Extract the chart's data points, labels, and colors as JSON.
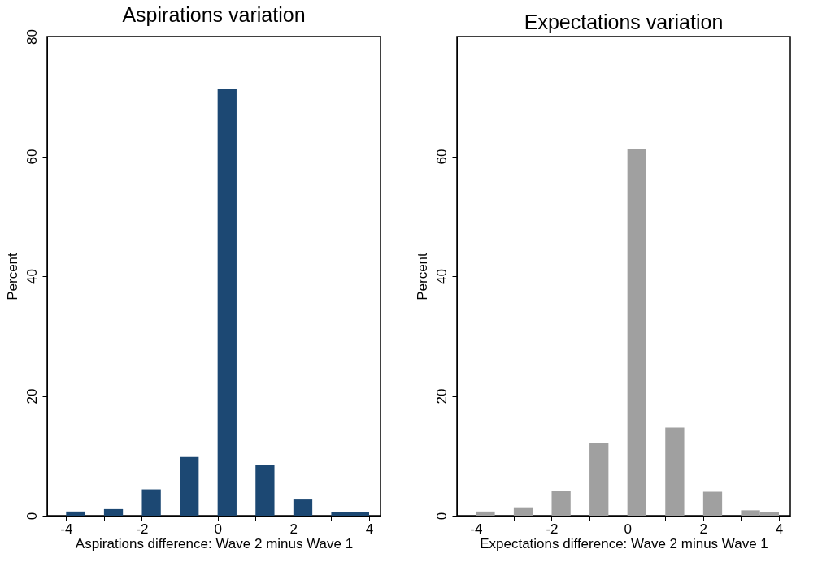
{
  "chart_data": [
    {
      "type": "histogram",
      "title": "Aspirations variation",
      "xlabel": "Aspirations difference: Wave 2 minus Wave 1",
      "ylabel": "Percent",
      "bins": [
        -4,
        -3.5,
        -3,
        -2.5,
        -2,
        -1.5,
        -1,
        -0.5,
        0,
        0.5,
        1,
        1.5,
        2,
        2.5,
        3,
        3.5,
        4
      ],
      "values": [
        0.7,
        0,
        1.1,
        0,
        4.4,
        0,
        9.8,
        0,
        71.3,
        0,
        8.4,
        0,
        2.7,
        0,
        0.6,
        0.6
      ],
      "color": "#1c4873",
      "xlim": [
        -4.5,
        4.3
      ],
      "ylim": [
        0,
        80
      ],
      "xticks": [
        -4,
        {
          "value": -3,
          "label": null
        },
        -2,
        {
          "value": -1,
          "label": null
        },
        0,
        {
          "value": 1,
          "label": null
        },
        2,
        {
          "value": 3,
          "label": null
        },
        4
      ],
      "yticks": [
        0,
        20,
        40,
        60,
        80
      ],
      "grid": false
    },
    {
      "type": "histogram",
      "title": "Expectations variation",
      "xlabel": "Expectations difference: Wave 2 minus Wave 1",
      "ylabel": "Percent",
      "bins": [
        -4,
        -3.5,
        -3,
        -2.5,
        -2,
        -1.5,
        -1,
        -0.5,
        0,
        0.5,
        1,
        1.5,
        2,
        2.5,
        3,
        3.5,
        4
      ],
      "values": [
        0.7,
        0,
        1.4,
        0,
        4.1,
        0,
        12.2,
        0,
        61.3,
        0,
        14.7,
        0,
        4.0,
        0,
        0.9,
        0.6
      ],
      "color": "#a0a0a0",
      "xlim": [
        -4.5,
        4.3
      ],
      "ylim": [
        0,
        80
      ],
      "xticks": [
        -4,
        {
          "value": -3,
          "label": null
        },
        -2,
        {
          "value": -1,
          "label": null
        },
        0,
        {
          "value": 1,
          "label": null
        },
        2,
        {
          "value": 3,
          "label": null
        },
        4
      ],
      "yticks": [
        0,
        20,
        40,
        60
      ],
      "grid": false
    }
  ]
}
